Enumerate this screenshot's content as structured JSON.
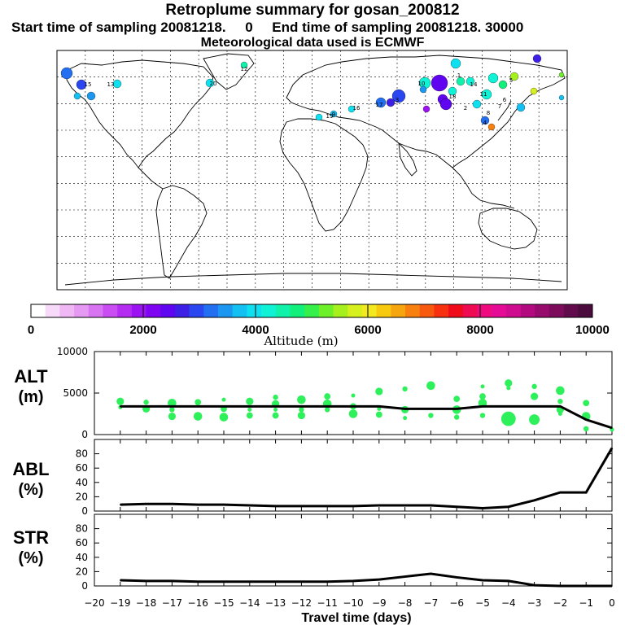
{
  "header": {
    "title": "Retroplume summary for gosan_200812",
    "sampling_line": "Start time of sampling 20081218.     0     End time of sampling 20081218. 30000",
    "met_line": "Meteorological data used is ECMWF"
  },
  "colorbar": {
    "label": "Altitude (m)",
    "ticks": [
      "0",
      "2000",
      "4000",
      "6000",
      "8000",
      "10000"
    ],
    "colors": [
      "#ffffff",
      "#f7d9f9",
      "#efb8f4",
      "#e599f2",
      "#d873f2",
      "#c94df2",
      "#b42cf2",
      "#9b13f2",
      "#7f05f2",
      "#5f05ef",
      "#3d1fe6",
      "#2a46f0",
      "#236ff2",
      "#1b97f2",
      "#14bff2",
      "#0fe0f0",
      "#0ff2d6",
      "#10f2a9",
      "#12f07c",
      "#35ef4a",
      "#6ef028",
      "#a6f01e",
      "#d6f01e",
      "#f2e91e",
      "#f7c90f",
      "#f7a50f",
      "#f7800f",
      "#f7590f",
      "#f7300f",
      "#ef0b1a",
      "#ef0b52",
      "#ef0b7f",
      "#e50b97",
      "#cf0b8f",
      "#b30b7f",
      "#960b6c",
      "#7c0b5c",
      "#620b4c",
      "#4c0b3d"
    ]
  },
  "chart_data": [
    {
      "type": "line",
      "panel": "ALT",
      "ylabel": "ALT\n(m)",
      "ylim": [
        0,
        10000
      ],
      "yticks": [
        0,
        5000,
        10000
      ],
      "x": [
        -19,
        -18,
        -17,
        -16,
        -15,
        -14,
        -13,
        -12,
        -11,
        -10,
        -9,
        -8,
        -7,
        -6,
        -5,
        -4,
        -3,
        -2,
        -1,
        0
      ],
      "values": [
        3400,
        3400,
        3400,
        3400,
        3400,
        3400,
        3400,
        3400,
        3400,
        3400,
        3400,
        3100,
        3100,
        3100,
        3400,
        3400,
        3400,
        3400,
        1800,
        800
      ],
      "cluster_points": [
        {
          "x": -19,
          "values": [
            4000,
            3300
          ]
        },
        {
          "x": -18,
          "values": [
            3900,
            3100
          ]
        },
        {
          "x": -17,
          "values": [
            3800,
            3000,
            2200
          ]
        },
        {
          "x": -16,
          "values": [
            3900,
            2200
          ]
        },
        {
          "x": -15,
          "values": [
            4200,
            3100,
            2100
          ]
        },
        {
          "x": -14,
          "values": [
            4000,
            3000,
            2300
          ]
        },
        {
          "x": -13,
          "values": [
            4500,
            3700,
            3000,
            2300
          ]
        },
        {
          "x": -12,
          "values": [
            4200,
            3000,
            2300
          ]
        },
        {
          "x": -11,
          "values": [
            4600,
            3700,
            3000
          ]
        },
        {
          "x": -10,
          "values": [
            4700,
            3400,
            2500
          ]
        },
        {
          "x": -9,
          "values": [
            5200,
            3100,
            2400
          ]
        },
        {
          "x": -8,
          "values": [
            5500,
            3000,
            2000
          ]
        },
        {
          "x": -7,
          "values": [
            5900,
            2300
          ]
        },
        {
          "x": -6,
          "values": [
            4300,
            3000,
            2100
          ]
        },
        {
          "x": -5,
          "values": [
            5800,
            4600,
            3800,
            2300
          ]
        },
        {
          "x": -4,
          "values": [
            6200,
            5600,
            1900
          ]
        },
        {
          "x": -3,
          "values": [
            5800,
            4600,
            1800
          ]
        },
        {
          "x": -2,
          "values": [
            5300,
            4000,
            3000,
            2500
          ]
        },
        {
          "x": -1,
          "values": [
            3800,
            2200,
            700
          ]
        },
        {
          "x": 0,
          "values": [
            600
          ]
        }
      ]
    },
    {
      "type": "line",
      "panel": "ABL",
      "ylabel": "ABL\n(%)",
      "ylim": [
        0,
        100
      ],
      "yticks": [
        0,
        20,
        40,
        60,
        80
      ],
      "x": [
        -19,
        -18,
        -17,
        -16,
        -15,
        -14,
        -13,
        -12,
        -11,
        -10,
        -9,
        -8,
        -7,
        -6,
        -5,
        -4,
        -3,
        -2,
        -1,
        0
      ],
      "values": [
        9,
        10,
        10,
        9,
        9,
        8,
        7,
        7,
        7,
        7,
        8,
        8,
        8,
        6,
        4,
        6,
        15,
        26,
        26,
        88
      ]
    },
    {
      "type": "line",
      "panel": "STR",
      "ylabel": "STR\n(%)",
      "ylim": [
        0,
        100
      ],
      "yticks": [
        0,
        20,
        40,
        60,
        80
      ],
      "x": [
        -19,
        -18,
        -17,
        -16,
        -15,
        -14,
        -13,
        -12,
        -11,
        -10,
        -9,
        -8,
        -7,
        -6,
        -5,
        -4,
        -3,
        -2,
        -1,
        0
      ],
      "values": [
        8,
        7,
        7,
        6,
        6,
        6,
        6,
        6,
        6,
        7,
        9,
        13,
        17,
        12,
        8,
        7,
        1,
        0,
        0,
        0
      ]
    }
  ],
  "axis": {
    "x_ticks": [
      "−20",
      "−19",
      "−18",
      "−17",
      "−16",
      "−15",
      "−14",
      "−13",
      "−12",
      "−11",
      "−10",
      "−9",
      "−8",
      "−7",
      "−6",
      "−5",
      "−4",
      "−3",
      "−2",
      "−1",
      "0"
    ],
    "x_label": "Travel time (days)",
    "alt_ticks": [
      "0",
      "5000",
      "10000"
    ],
    "pct_ticks": [
      "0",
      "20",
      "40",
      "60",
      "80"
    ],
    "panel_labels": {
      "alt": [
        "ALT",
        "(m)"
      ],
      "abl": [
        "ABL",
        "(%)"
      ],
      "str": [
        "STR",
        "(%)"
      ]
    }
  },
  "map": {
    "labels": [
      "15",
      "13",
      "12",
      "10",
      "14",
      "11",
      "18",
      "17",
      "16",
      "19",
      "9",
      "8",
      "7",
      "6",
      "5",
      "4",
      "3",
      "2",
      "1",
      "20"
    ]
  }
}
